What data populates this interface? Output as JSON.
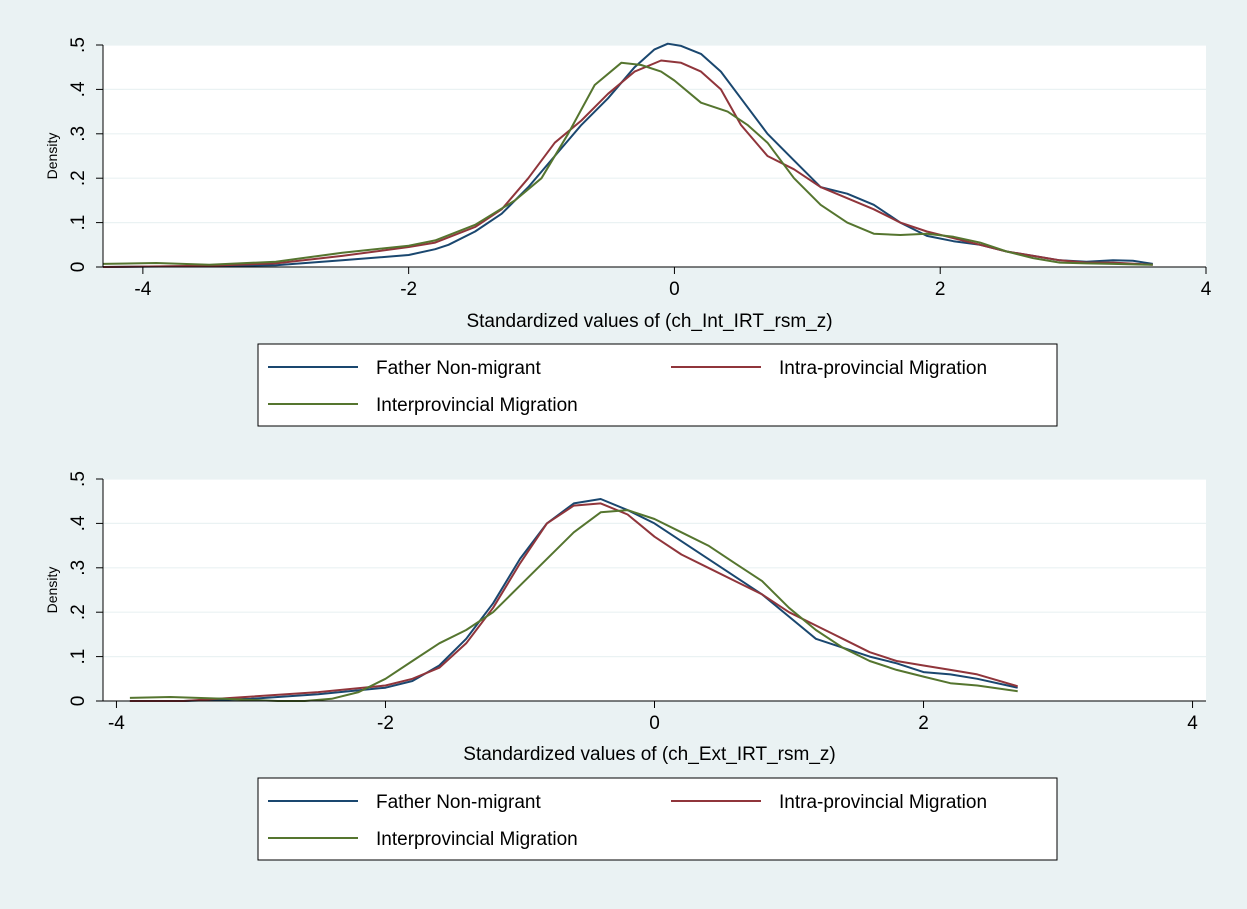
{
  "colors": {
    "background": "#eaf2f3",
    "plot_background": "#ffffff",
    "grid": "#eaf2f3",
    "axis": "#000000"
  },
  "chart_data": [
    {
      "type": "line",
      "title": "",
      "xlabel": "Standardized values of (ch_Int_IRT_rsm_z)",
      "ylabel": "Density",
      "xlim": [
        -4.3,
        4.0
      ],
      "ylim": [
        0,
        0.5
      ],
      "xticks": [
        -4,
        -2,
        0,
        2,
        4
      ],
      "xtick_labels": [
        "-4",
        "-2",
        "0",
        "2",
        "4"
      ],
      "yticks": [
        0,
        0.1,
        0.2,
        0.3,
        0.4,
        0.5
      ],
      "ytick_labels": [
        "0",
        ".1",
        ".2",
        ".3",
        ".4",
        ".5"
      ],
      "grid": true,
      "legend_position": "bottom",
      "series": [
        {
          "name": "Father Non-migrant",
          "color": "#1a476f",
          "x": [
            -4.3,
            -3.5,
            -3.0,
            -2.5,
            -2.0,
            -1.8,
            -1.7,
            -1.5,
            -1.3,
            -1.1,
            -0.9,
            -0.7,
            -0.5,
            -0.3,
            -0.15,
            -0.05,
            0.05,
            0.2,
            0.35,
            0.5,
            0.7,
            0.9,
            1.1,
            1.3,
            1.5,
            1.7,
            1.9,
            2.1,
            2.3,
            2.5,
            2.7,
            2.9,
            3.1,
            3.3,
            3.45,
            3.6
          ],
          "y": [
            0.0,
            0.002,
            0.004,
            0.015,
            0.027,
            0.04,
            0.05,
            0.08,
            0.12,
            0.18,
            0.25,
            0.32,
            0.38,
            0.45,
            0.49,
            0.503,
            0.498,
            0.48,
            0.44,
            0.38,
            0.3,
            0.24,
            0.18,
            0.165,
            0.14,
            0.1,
            0.07,
            0.058,
            0.05,
            0.035,
            0.025,
            0.015,
            0.012,
            0.015,
            0.014,
            0.007
          ]
        },
        {
          "name": "Intra-provincial Migration",
          "color": "#90353b",
          "x": [
            -4.3,
            -3.5,
            -3.0,
            -2.5,
            -2.0,
            -1.8,
            -1.5,
            -1.3,
            -1.1,
            -0.9,
            -0.7,
            -0.5,
            -0.3,
            -0.1,
            0.05,
            0.2,
            0.35,
            0.5,
            0.7,
            0.9,
            1.1,
            1.3,
            1.5,
            1.7,
            1.9,
            2.1,
            2.3,
            2.5,
            2.7,
            2.9,
            3.1,
            3.3,
            3.6
          ],
          "y": [
            0.0,
            0.003,
            0.008,
            0.025,
            0.045,
            0.055,
            0.09,
            0.13,
            0.2,
            0.28,
            0.33,
            0.39,
            0.44,
            0.465,
            0.46,
            0.44,
            0.4,
            0.32,
            0.25,
            0.22,
            0.18,
            0.155,
            0.13,
            0.1,
            0.08,
            0.065,
            0.05,
            0.035,
            0.025,
            0.015,
            0.01,
            0.01,
            0.005
          ]
        },
        {
          "name": "Interprovincial Migration",
          "color": "#55752f",
          "x": [
            -4.3,
            -3.9,
            -3.5,
            -3.0,
            -2.8,
            -2.5,
            -2.0,
            -1.8,
            -1.5,
            -1.2,
            -1.0,
            -0.8,
            -0.6,
            -0.4,
            -0.25,
            -0.1,
            0.0,
            0.2,
            0.4,
            0.55,
            0.7,
            0.9,
            1.1,
            1.3,
            1.5,
            1.7,
            1.9,
            2.1,
            2.3,
            2.5,
            2.7,
            2.9,
            3.1,
            3.3,
            3.6
          ],
          "y": [
            0.007,
            0.009,
            0.005,
            0.012,
            0.02,
            0.032,
            0.048,
            0.06,
            0.095,
            0.15,
            0.2,
            0.3,
            0.41,
            0.46,
            0.455,
            0.44,
            0.42,
            0.37,
            0.35,
            0.32,
            0.28,
            0.2,
            0.14,
            0.1,
            0.075,
            0.072,
            0.075,
            0.068,
            0.055,
            0.035,
            0.02,
            0.01,
            0.008,
            0.007,
            0.005
          ]
        }
      ]
    },
    {
      "type": "line",
      "title": "",
      "xlabel": "Standardized values of (ch_Ext_IRT_rsm_z)",
      "ylabel": "Density",
      "xlim": [
        -4.1,
        4.1
      ],
      "ylim": [
        0,
        0.5
      ],
      "xticks": [
        -4,
        -2,
        0,
        2,
        4
      ],
      "xtick_labels": [
        "-4",
        "-2",
        "0",
        "2",
        "4"
      ],
      "yticks": [
        0,
        0.1,
        0.2,
        0.3,
        0.4,
        0.5
      ],
      "ytick_labels": [
        "0",
        ".1",
        ".2",
        ".3",
        ".4",
        ".5"
      ],
      "grid": true,
      "legend_position": "bottom",
      "series": [
        {
          "name": "Father Non-migrant",
          "color": "#1a476f",
          "x": [
            -3.9,
            -3.5,
            -3.0,
            -2.5,
            -2.0,
            -1.8,
            -1.6,
            -1.4,
            -1.2,
            -1.0,
            -0.8,
            -0.6,
            -0.4,
            -0.2,
            0.0,
            0.2,
            0.4,
            0.6,
            0.8,
            1.0,
            1.2,
            1.4,
            1.6,
            1.8,
            2.0,
            2.2,
            2.4,
            2.7
          ],
          "y": [
            0.0,
            0.0,
            0.005,
            0.015,
            0.03,
            0.045,
            0.08,
            0.14,
            0.22,
            0.32,
            0.4,
            0.445,
            0.455,
            0.43,
            0.4,
            0.36,
            0.32,
            0.28,
            0.24,
            0.19,
            0.14,
            0.12,
            0.1,
            0.085,
            0.065,
            0.06,
            0.05,
            0.03
          ]
        },
        {
          "name": "Intra-provincial Migration",
          "color": "#90353b",
          "x": [
            -3.9,
            -3.5,
            -3.0,
            -2.5,
            -2.0,
            -1.8,
            -1.6,
            -1.4,
            -1.2,
            -1.0,
            -0.8,
            -0.6,
            -0.4,
            -0.2,
            0.0,
            0.2,
            0.4,
            0.6,
            0.8,
            1.0,
            1.2,
            1.4,
            1.6,
            1.8,
            2.0,
            2.2,
            2.4,
            2.7
          ],
          "y": [
            0.0,
            0.0,
            0.01,
            0.02,
            0.035,
            0.05,
            0.075,
            0.13,
            0.21,
            0.31,
            0.4,
            0.44,
            0.445,
            0.42,
            0.37,
            0.33,
            0.3,
            0.27,
            0.24,
            0.2,
            0.17,
            0.14,
            0.11,
            0.09,
            0.08,
            0.07,
            0.06,
            0.033
          ]
        },
        {
          "name": "Interprovincial Migration",
          "color": "#55752f",
          "x": [
            -3.9,
            -3.6,
            -3.2,
            -2.8,
            -2.6,
            -2.4,
            -2.2,
            -2.0,
            -1.8,
            -1.6,
            -1.4,
            -1.2,
            -1.0,
            -0.8,
            -0.6,
            -0.4,
            -0.2,
            0.0,
            0.2,
            0.4,
            0.6,
            0.8,
            1.0,
            1.2,
            1.4,
            1.6,
            1.8,
            2.0,
            2.2,
            2.4,
            2.7
          ],
          "y": [
            0.007,
            0.009,
            0.005,
            0.0,
            0.0,
            0.005,
            0.02,
            0.05,
            0.09,
            0.13,
            0.16,
            0.2,
            0.26,
            0.32,
            0.38,
            0.425,
            0.43,
            0.41,
            0.38,
            0.35,
            0.31,
            0.27,
            0.21,
            0.16,
            0.12,
            0.09,
            0.07,
            0.055,
            0.04,
            0.035,
            0.022
          ]
        }
      ]
    }
  ]
}
